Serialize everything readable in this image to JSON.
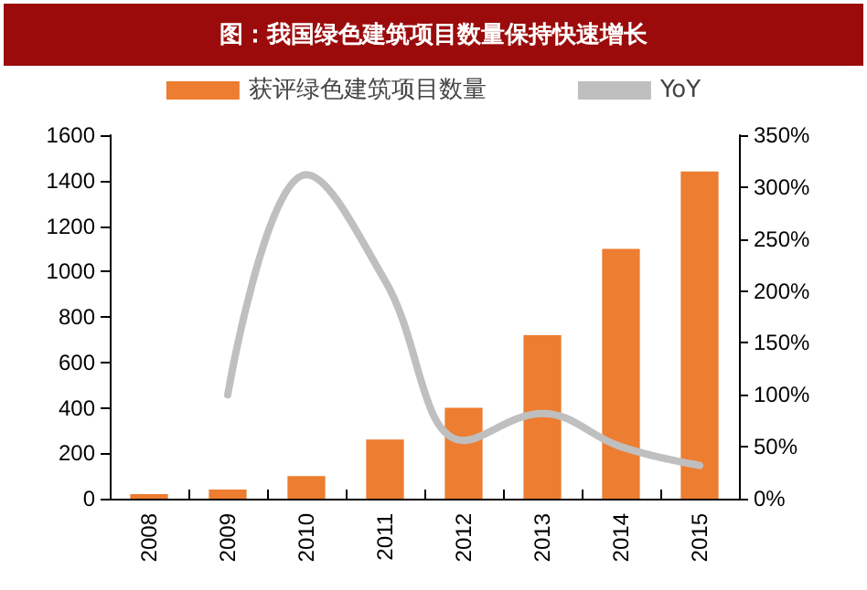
{
  "chart_data": {
    "type": "bar",
    "title": "图：我国绿色建筑项目数量保持快速增长",
    "categories": [
      "2008",
      "2009",
      "2010",
      "2011",
      "2012",
      "2013",
      "2014",
      "2015"
    ],
    "series": [
      {
        "name": "获评绿色建筑项目数量",
        "color": "#ed7d31",
        "values": [
          20,
          40,
          100,
          260,
          400,
          720,
          1100,
          1440
        ]
      },
      {
        "name": "YoY",
        "type": "line",
        "axis": "y2",
        "color": "#bfbfbf",
        "values": [
          null,
          100,
          312,
          210,
          56,
          82,
          50,
          32
        ]
      }
    ],
    "ylim": [
      0,
      1600
    ],
    "yticks": [
      0,
      200,
      400,
      600,
      800,
      1000,
      1200,
      1400,
      1600
    ],
    "y2lim": [
      0,
      350
    ],
    "y2ticks": [
      {
        "value": 0,
        "label": "0%"
      },
      {
        "value": 50,
        "label": "50%"
      },
      {
        "value": 100,
        "label": "100%"
      },
      {
        "value": 150,
        "label": "150%"
      },
      {
        "value": 200,
        "label": "200%"
      },
      {
        "value": 250,
        "label": "250%"
      },
      {
        "value": 300,
        "label": "300%"
      },
      {
        "value": 350,
        "label": "350%"
      }
    ],
    "grid": false,
    "legend": "top",
    "marker": "none"
  }
}
